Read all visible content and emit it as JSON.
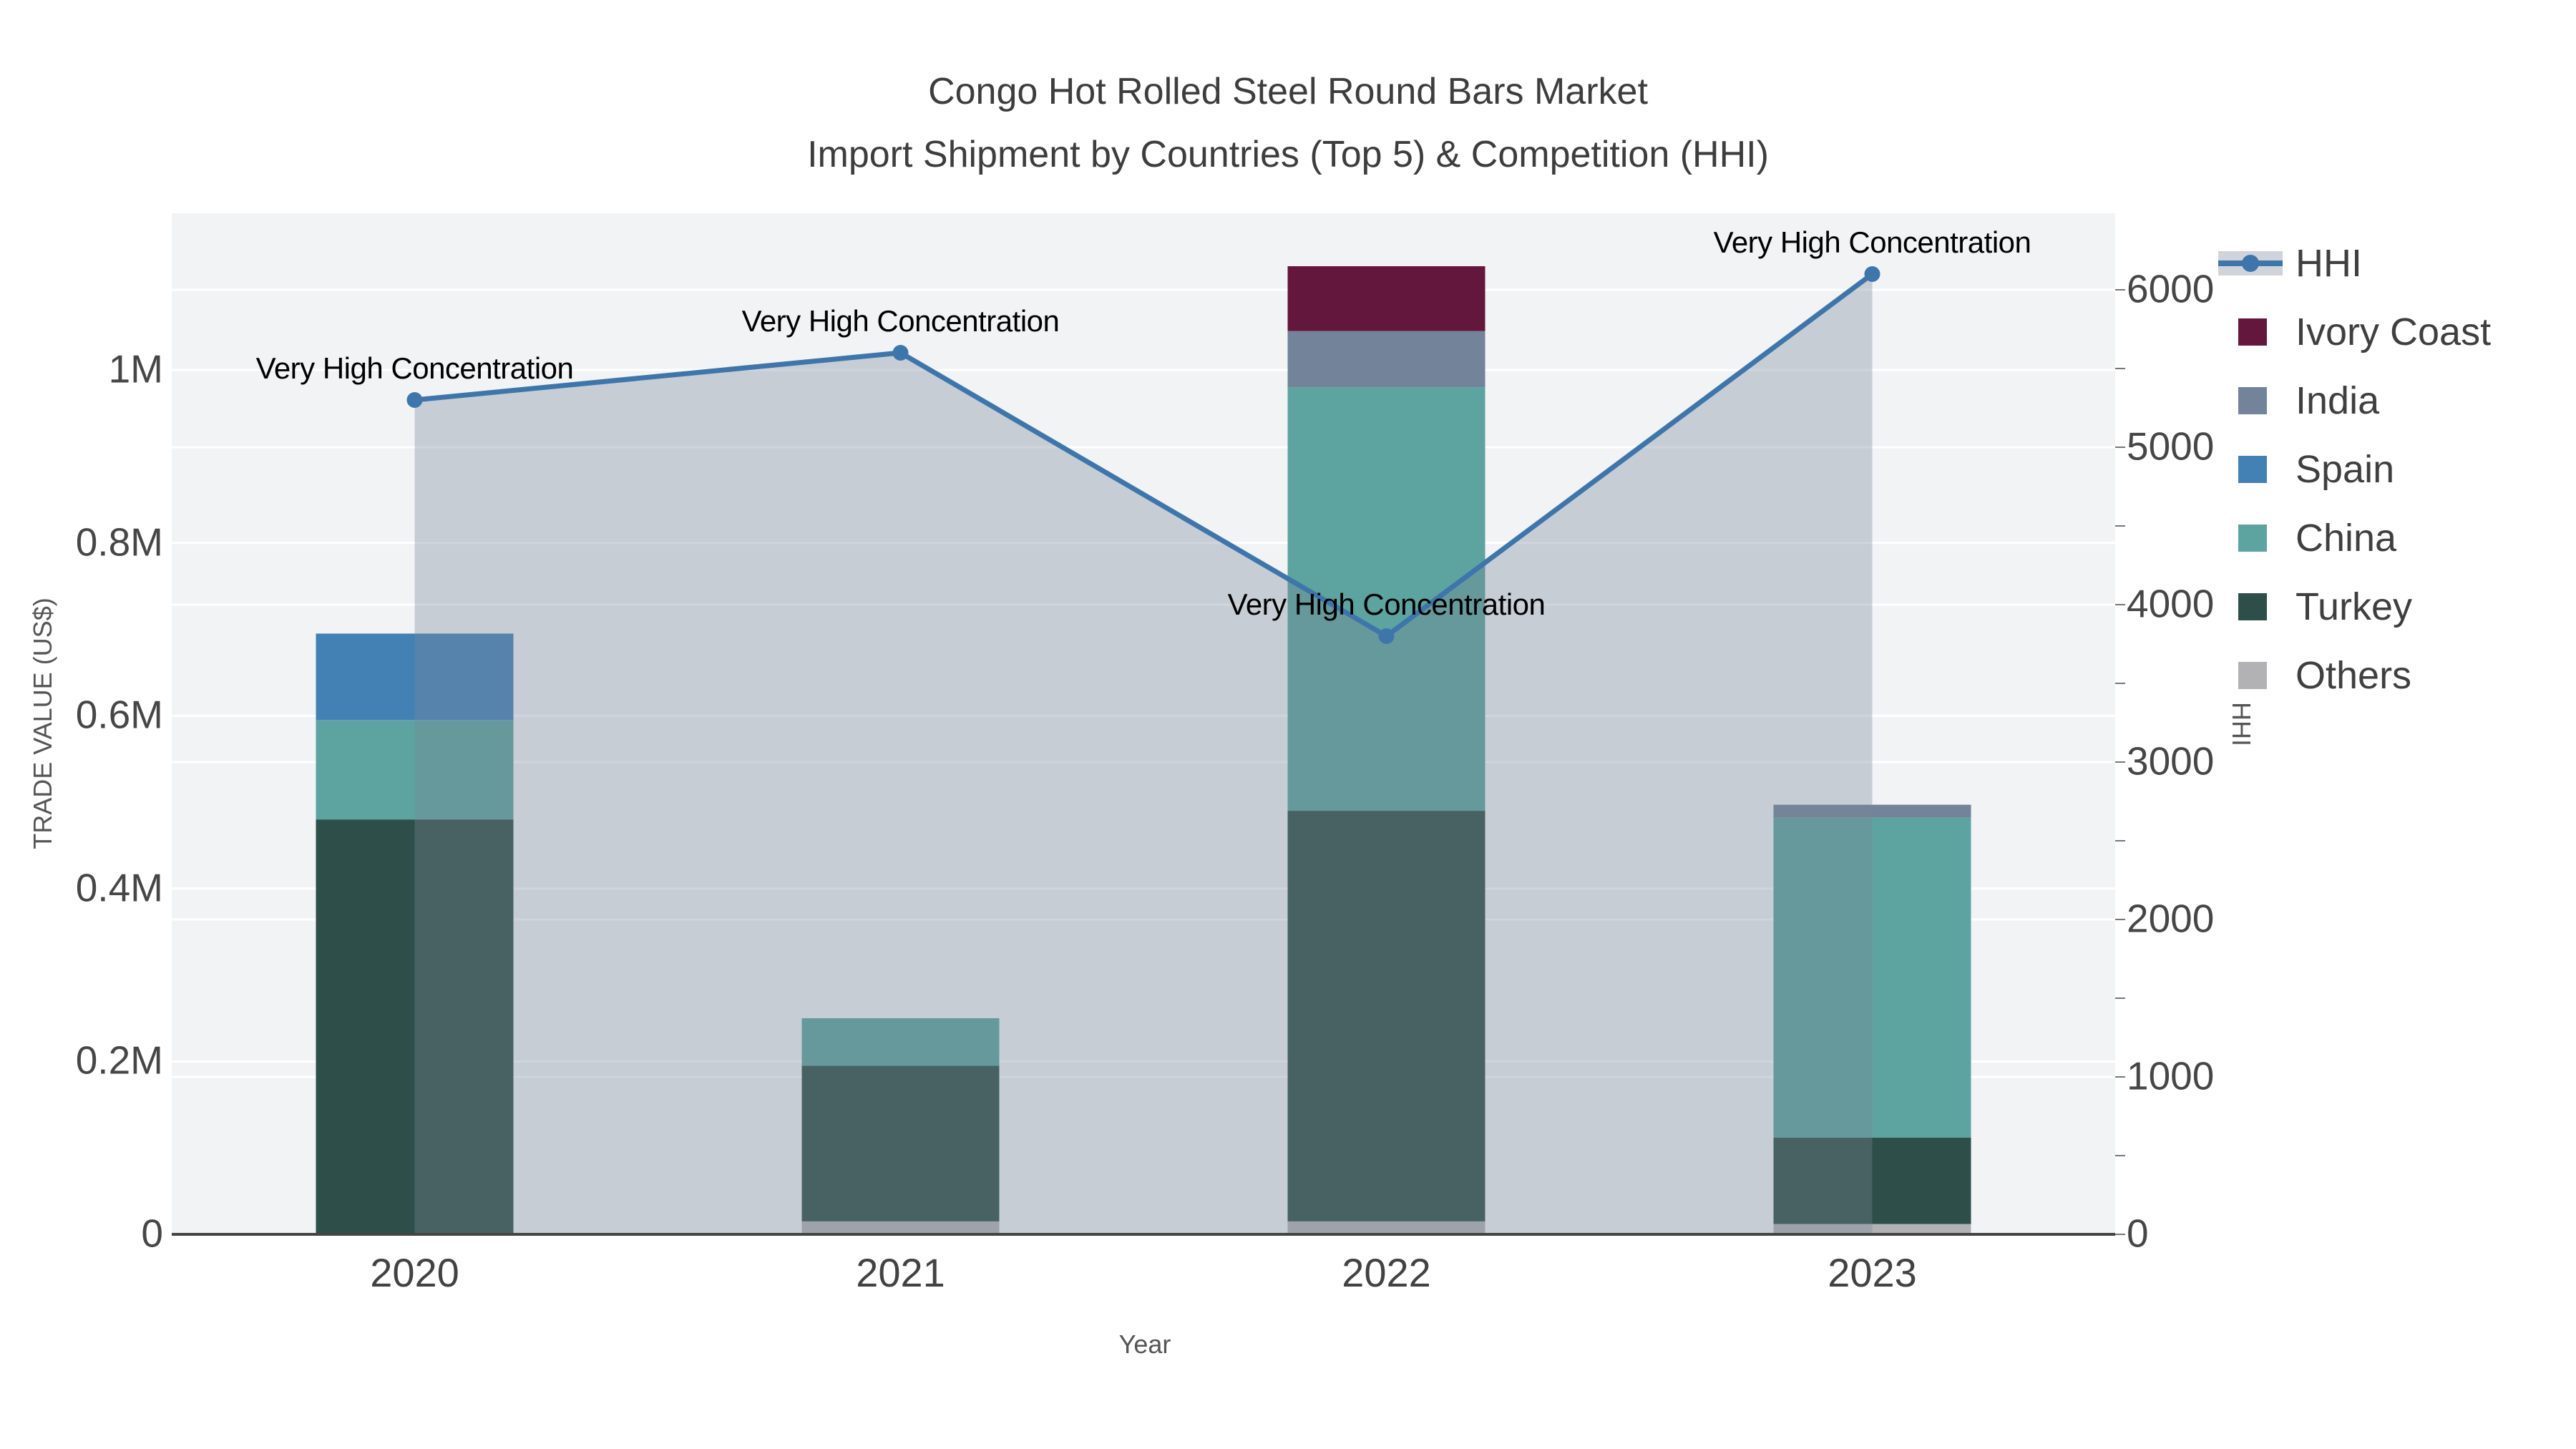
{
  "title": {
    "line1": "Congo Hot Rolled Steel Round Bars Market",
    "line2": "Import Shipment by Countries (Top 5) & Competition (HHI)"
  },
  "colors": {
    "plot_bg": "#f2f3f4",
    "grid": "#ffffff",
    "axis_line": "#444444",
    "tick_mark": "#777777",
    "hhi_line": "#3e76ab",
    "hhi_fill": "rgba(119,136,153,0.35)",
    "hhi_legend_band": "#d0d4da"
  },
  "axes": {
    "x": {
      "title": "Year",
      "ticks": [
        "2020",
        "2021",
        "2022",
        "2023"
      ]
    },
    "y_left": {
      "title": "TRADE VALUE (US$)",
      "ticks": [
        "0",
        "0.2M",
        "0.4M",
        "0.6M",
        "0.8M",
        "1M"
      ],
      "values": [
        0,
        0.2,
        0.4,
        0.6,
        0.8,
        1.0
      ]
    },
    "y_right": {
      "title": "HHI",
      "ticks": [
        "0",
        "1000",
        "2000",
        "3000",
        "4000",
        "5000",
        "6000"
      ],
      "values": [
        0,
        1000,
        2000,
        3000,
        4000,
        5000,
        6000
      ],
      "minor_tick_step": 500
    }
  },
  "legend": {
    "items": [
      {
        "label": "HHI",
        "type": "line-area",
        "color": "#3e76ab"
      },
      {
        "label": "Ivory Coast",
        "type": "square",
        "color": "#64173c"
      },
      {
        "label": "India",
        "type": "square",
        "color": "#72839a"
      },
      {
        "label": "Spain",
        "type": "square",
        "color": "#4381b5"
      },
      {
        "label": "China",
        "type": "square",
        "color": "#5da39f"
      },
      {
        "label": "Turkey",
        "type": "square",
        "color": "#2e4f49"
      },
      {
        "label": "Others",
        "type": "square",
        "color": "#b2b2b5"
      }
    ]
  },
  "chart_data": {
    "type": "bar",
    "subtype": "stacked-bars-plus-line-area-dual-axis",
    "title": "Congo Hot Rolled Steel Round Bars Market — Import Shipment by Countries (Top 5) & Competition (HHI)",
    "categories": [
      "2020",
      "2021",
      "2022",
      "2023"
    ],
    "xlabel": "Year",
    "ylabel_left": "TRADE VALUE (US$)",
    "ylabel_right": "HHI",
    "ylim_left_musd": [
      0,
      1.18
    ],
    "ylim_right": [
      0,
      6490
    ],
    "grid": "on",
    "legend_position": "top-right-outside",
    "series": [
      {
        "name": "Others",
        "axis": "left",
        "stack_order": 1,
        "color": "#b2b2b5",
        "values_musd": [
          0,
          0.015,
          0.015,
          0.012
        ]
      },
      {
        "name": "Turkey",
        "axis": "left",
        "stack_order": 2,
        "color": "#2e4f49",
        "values_musd": [
          0.48,
          0.18,
          0.475,
          0.1
        ]
      },
      {
        "name": "China",
        "axis": "left",
        "stack_order": 3,
        "color": "#5da39f",
        "values_musd": [
          0.115,
          0.055,
          0.49,
          0.37
        ]
      },
      {
        "name": "Spain",
        "axis": "left",
        "stack_order": 4,
        "color": "#4381b5",
        "values_musd": [
          0.1,
          0,
          0,
          0
        ]
      },
      {
        "name": "India",
        "axis": "left",
        "stack_order": 5,
        "color": "#72839a",
        "values_musd": [
          0,
          0,
          0.065,
          0.015
        ]
      },
      {
        "name": "Ivory Coast",
        "axis": "left",
        "stack_order": 6,
        "color": "#64173c",
        "values_musd": [
          0,
          0,
          0.075,
          0
        ]
      }
    ],
    "stack_totals_musd": [
      0.695,
      0.25,
      1.12,
      0.497
    ],
    "hhi": {
      "name": "HHI",
      "axis": "right",
      "values": [
        5300,
        5600,
        3800,
        6100
      ],
      "line_color": "#3e76ab",
      "fill_color": "rgba(119,136,153,0.35)",
      "marker": "circle"
    },
    "annotations": [
      "Very High Concentration",
      "Very High Concentration",
      "Very High Concentration",
      "Very High Concentration"
    ]
  }
}
